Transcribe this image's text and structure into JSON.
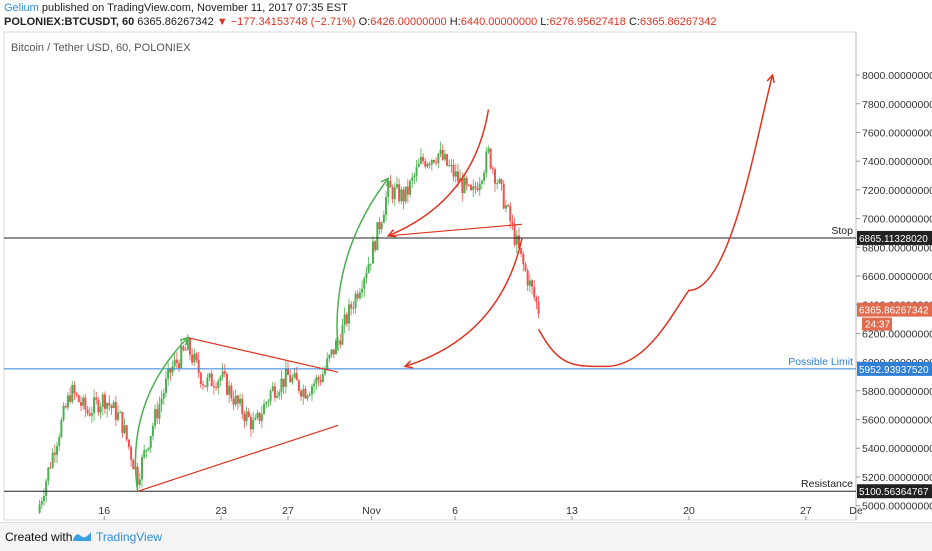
{
  "header": {
    "author": "Gelium",
    "published": "published on TradingView.com, November 11, 2017 07:35 EST",
    "symbol": "POLONIEX:BTCUSDT, 60",
    "price": "6365.86267342",
    "change": "−177.34153748 (−2.71%)",
    "open_label": "O:",
    "open": "6426.00000000",
    "high_label": "H:",
    "high": "6440.00000000",
    "low_label": "L:",
    "low": "6276.95627418",
    "close_label": "C:",
    "close": "6365.86267342"
  },
  "footer": {
    "created_with": "Created with",
    "brand": "TradingView"
  },
  "colors": {
    "up": "#4caf50",
    "down": "#ef5350",
    "annotation_red": "#e0321f",
    "annotation_green": "#4caf50",
    "limit_blue": "#2f7fd6"
  },
  "chart_data": {
    "type": "candlestick",
    "title": "Bitcoin / Tether USD, 60, POLONIEX",
    "y_axis": {
      "range": [
        4900,
        8300
      ],
      "ticks": [
        5000,
        5200,
        5400,
        5600,
        5800,
        6000,
        6200,
        6400,
        6600,
        6800,
        7000,
        7200,
        7400,
        7600,
        7800,
        8000
      ],
      "tick_labels": [
        "5000.00000000",
        "5200.00000000",
        "5400.00000000",
        "5600.00000000",
        "5800.00000000",
        "6000.00000000",
        "6200.00000000",
        "6400.00000000",
        "6600.00000000",
        "6800.00000000",
        "7000.00000000",
        "7200.00000000",
        "7400.00000000",
        "7600.00000000",
        "7800.00000000",
        "8000.00000000"
      ]
    },
    "x_axis": {
      "range": [
        "2017-10-10",
        "2017-11-30"
      ],
      "ticks": [
        {
          "date": "2017-10-16",
          "label": "16"
        },
        {
          "date": "2017-10-23",
          "label": "23"
        },
        {
          "date": "2017-10-27",
          "label": "27"
        },
        {
          "date": "2017-11-01",
          "label": "Nov"
        },
        {
          "date": "2017-11-06",
          "label": "6"
        },
        {
          "date": "2017-11-13",
          "label": "13"
        },
        {
          "date": "2017-11-20",
          "label": "20"
        },
        {
          "date": "2017-11-27",
          "label": "27"
        },
        {
          "date": "2017-11-30",
          "label": "De"
        }
      ]
    },
    "price_path": [
      [
        "2017-10-12",
        4950
      ],
      [
        "2017-10-13",
        5400
      ],
      [
        "2017-10-14",
        5800
      ],
      [
        "2017-10-15",
        5650
      ],
      [
        "2017-10-16",
        5750
      ],
      [
        "2017-10-17",
        5600
      ],
      [
        "2017-10-18",
        5200
      ],
      [
        "2017-10-19",
        5600
      ],
      [
        "2017-10-20",
        5950
      ],
      [
        "2017-10-21",
        6100
      ],
      [
        "2017-10-22",
        5850
      ],
      [
        "2017-10-23",
        5900
      ],
      [
        "2017-10-24",
        5700
      ],
      [
        "2017-10-25",
        5550
      ],
      [
        "2017-10-26",
        5800
      ],
      [
        "2017-10-27",
        5900
      ],
      [
        "2017-10-28",
        5800
      ],
      [
        "2017-10-29",
        5900
      ],
      [
        "2017-10-30",
        6150
      ],
      [
        "2017-10-31",
        6450
      ],
      [
        "2017-11-01",
        6750
      ],
      [
        "2017-11-02",
        7200
      ],
      [
        "2017-11-03",
        7150
      ],
      [
        "2017-11-04",
        7400
      ],
      [
        "2017-11-05",
        7450
      ],
      [
        "2017-11-06",
        7300
      ],
      [
        "2017-11-07",
        7150
      ],
      [
        "2017-11-08",
        7450
      ],
      [
        "2017-11-09",
        7100
      ],
      [
        "2017-11-10",
        6700
      ],
      [
        "2017-11-11",
        6366
      ]
    ],
    "levels": [
      {
        "name": "Stop",
        "value": 6865.1132802,
        "label": "6865.11328020",
        "color": "#222222"
      },
      {
        "name": "Possible Limit",
        "value": 5952.9393752,
        "label": "5952.93937520",
        "color": "#2f7fd6"
      },
      {
        "name": "Resistance",
        "value": 5100.56364767,
        "label": "5100.56364767",
        "color": "#222222"
      }
    ],
    "last_price": {
      "value": 6365.86267342,
      "label": "6365.86267342",
      "countdown": "24:37"
    },
    "trendlines": [
      {
        "color": "#e0321f",
        "from": [
          "2017-10-18",
          5100
        ],
        "to": [
          "2017-10-30",
          5560
        ]
      },
      {
        "color": "#e0321f",
        "from": [
          "2017-10-21",
          6170
        ],
        "to": [
          "2017-10-30",
          5930
        ]
      },
      {
        "color": "#e0321f",
        "from": [
          "2017-11-02",
          6880
        ],
        "to": [
          "2017-11-10",
          6960
        ]
      }
    ],
    "arrows": [
      {
        "color": "#4caf50",
        "from": [
          "2017-10-18",
          5100
        ],
        "to": [
          "2017-10-21",
          6170
        ],
        "curve": -40
      },
      {
        "color": "#4caf50",
        "from": [
          "2017-10-30",
          6080
        ],
        "to": [
          "2017-11-02",
          7280
        ],
        "curve": -35
      },
      {
        "color": "#e0321f",
        "from": [
          "2017-11-08",
          7760
        ],
        "to": [
          "2017-11-02",
          6880
        ],
        "curve": -45
      },
      {
        "color": "#e0321f",
        "from": [
          "2017-11-10",
          6860
        ],
        "to": [
          "2017-11-03",
          5970
        ],
        "curve": -50
      }
    ],
    "projection": {
      "color": "#e0321f",
      "points": [
        [
          "2017-11-11",
          6230
        ],
        [
          "2017-11-15",
          5970
        ],
        [
          "2017-11-20",
          6500
        ],
        [
          "2017-11-25",
          8000
        ]
      ]
    }
  }
}
